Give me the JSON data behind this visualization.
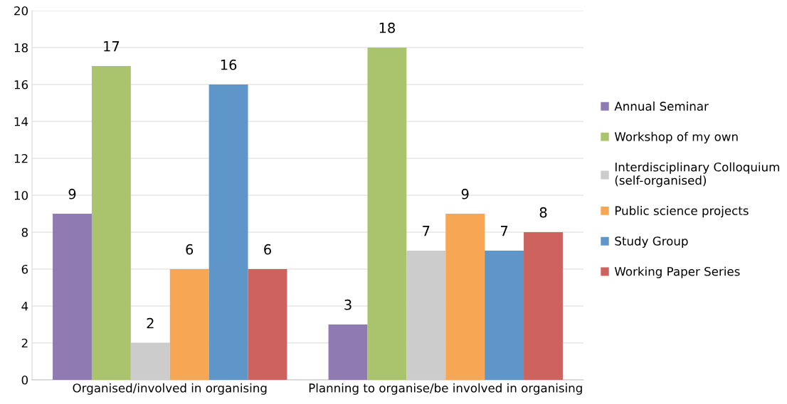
{
  "chart_data": {
    "type": "bar",
    "categories": [
      "Organised/involved in organising",
      "Planning to organise/be involved in organising"
    ],
    "series": [
      {
        "name": "Annual Seminar",
        "color": "#8f7ab1",
        "values": [
          9,
          3
        ]
      },
      {
        "name": "Workshop of my own",
        "color": "#a9c46c",
        "values": [
          17,
          18
        ]
      },
      {
        "name": "Interdisciplinary Colloquium\n(self-organised)",
        "color": "#cccccc",
        "values": [
          2,
          7
        ]
      },
      {
        "name": "Public science projects",
        "color": "#f7a654",
        "values": [
          6,
          9
        ]
      },
      {
        "name": "Study Group",
        "color": "#5f96c9",
        "values": [
          16,
          7
        ]
      },
      {
        "name": "Working Paper Series",
        "color": "#cd625f",
        "values": [
          6,
          8
        ]
      }
    ],
    "ylim": [
      0,
      20
    ],
    "yticks": [
      0,
      2,
      4,
      6,
      8,
      10,
      12,
      14,
      16,
      18,
      20
    ],
    "grid": "y",
    "legend": "right",
    "data_labels": true
  }
}
